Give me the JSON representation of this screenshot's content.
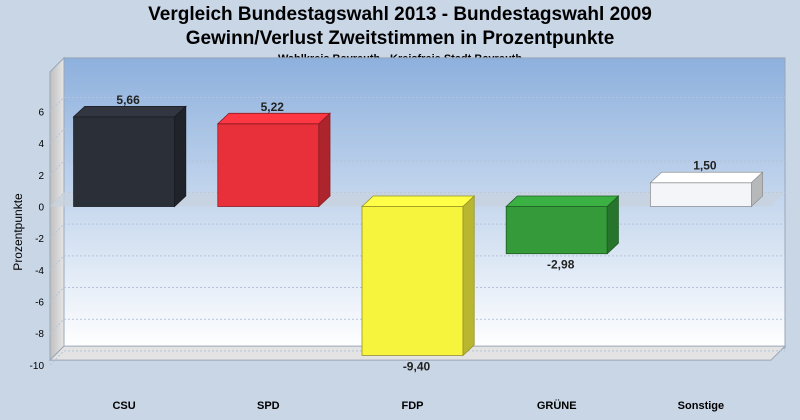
{
  "chart_data": {
    "type": "bar",
    "title": "Vergleich Bundestagswahl 2013 - Bundestagswahl 2009",
    "title_line2": "Gewinn/Verlust Zweitstimmen in Prozentpunkte",
    "subtitle": "Wahlkreis Bayreuth - Kreisfreie Stadt Bayreuth",
    "ylabel": "Prozentpunkte",
    "xlabel": "",
    "ylim": [
      -11,
      8
    ],
    "yticks": [
      6,
      4,
      2,
      0,
      -2,
      -4,
      -6,
      -8,
      -10
    ],
    "categories": [
      "CSU",
      "SPD",
      "FDP",
      "GRÜNE",
      "Sonstige"
    ],
    "values": [
      5.66,
      5.22,
      -9.4,
      -2.98,
      1.5
    ],
    "value_labels": [
      "5,66",
      "5,22",
      "-9,40",
      "-2,98",
      "1,50"
    ],
    "colors": [
      "#2b2f38",
      "#e8303a",
      "#f7f43e",
      "#349a3a",
      "#f3f5f8"
    ],
    "grid": true,
    "legend": "none"
  }
}
